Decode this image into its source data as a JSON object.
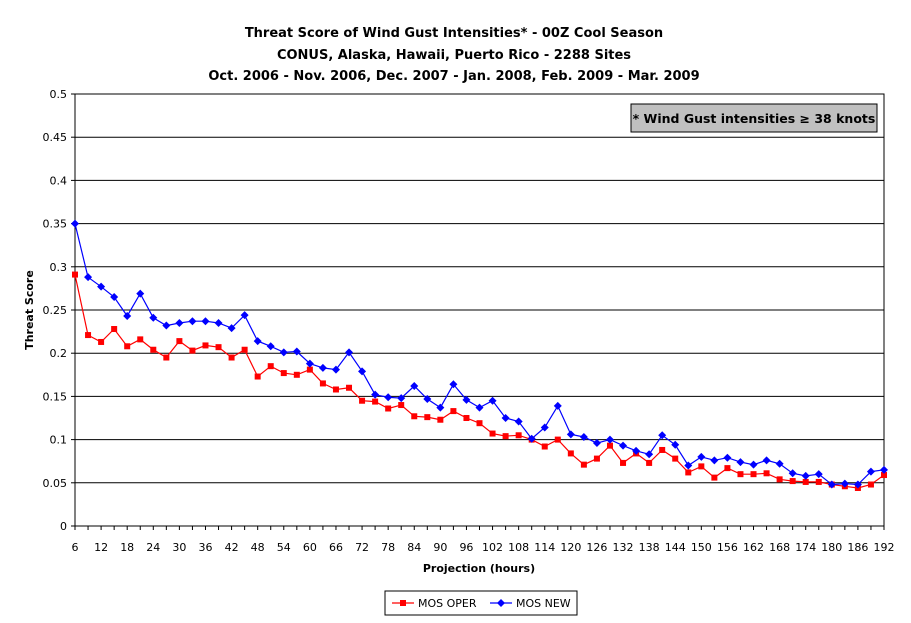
{
  "chart_data": {
    "type": "line",
    "title_lines": [
      "Threat Score of Wind Gust Intensities* - 00Z Cool Season",
      "CONUS, Alaska, Hawaii, Puerto Rico - 2288 Sites",
      "Oct. 2006 - Nov. 2006, Dec. 2007 - Jan. 2008, Feb. 2009 - Mar. 2009"
    ],
    "annotation": "* Wind Gust intensities ≥ 38 knots",
    "xlabel": "Projection (hours)",
    "ylabel": "Threat Score",
    "xlim": [
      6,
      192
    ],
    "ylim": [
      0,
      0.5
    ],
    "x_ticks": [
      "6",
      "12",
      "18",
      "24",
      "30",
      "36",
      "42",
      "48",
      "54",
      "60",
      "66",
      "72",
      "78",
      "84",
      "90",
      "96",
      "102",
      "108",
      "114",
      "120",
      "126",
      "132",
      "138",
      "144",
      "150",
      "156",
      "162",
      "168",
      "174",
      "180",
      "186",
      "192"
    ],
    "y_ticks": [
      "0",
      "0.05",
      "0.1",
      "0.15",
      "0.2",
      "0.25",
      "0.3",
      "0.35",
      "0.4",
      "0.45",
      "0.5"
    ],
    "grid": "horizontal",
    "legend_position": "bottom",
    "x": [
      6,
      9,
      12,
      15,
      18,
      21,
      24,
      27,
      30,
      33,
      36,
      39,
      42,
      45,
      48,
      51,
      54,
      57,
      60,
      63,
      66,
      69,
      72,
      75,
      78,
      81,
      84,
      87,
      90,
      93,
      96,
      99,
      102,
      105,
      108,
      111,
      114,
      117,
      120,
      123,
      126,
      129,
      132,
      135,
      138,
      141,
      144,
      147,
      150,
      153,
      156,
      159,
      162,
      165,
      168,
      171,
      174,
      177,
      180,
      183,
      186,
      189,
      192
    ],
    "series": [
      {
        "name": "MOS OPER",
        "color": "#ff0000",
        "marker": "square",
        "values": [
          0.291,
          0.221,
          0.213,
          0.228,
          0.208,
          0.216,
          0.204,
          0.195,
          0.214,
          0.203,
          0.209,
          0.207,
          0.195,
          0.204,
          0.173,
          0.185,
          0.177,
          0.175,
          0.181,
          0.165,
          0.158,
          0.16,
          0.145,
          0.144,
          0.136,
          0.14,
          0.127,
          0.126,
          0.123,
          0.133,
          0.125,
          0.119,
          0.107,
          0.104,
          0.105,
          0.1,
          0.092,
          0.1,
          0.084,
          0.071,
          0.078,
          0.093,
          0.073,
          0.084,
          0.073,
          0.088,
          0.078,
          0.062,
          0.069,
          0.056,
          0.067,
          0.06,
          0.06,
          0.061,
          0.054,
          0.052,
          0.051,
          0.051,
          0.048,
          0.046,
          0.044,
          0.048,
          0.059
        ]
      },
      {
        "name": "MOS NEW",
        "color": "#0000ff",
        "marker": "diamond",
        "values": [
          0.35,
          0.288,
          0.277,
          0.265,
          0.243,
          0.269,
          0.241,
          0.232,
          0.235,
          0.237,
          0.237,
          0.235,
          0.229,
          0.244,
          0.214,
          0.208,
          0.201,
          0.202,
          0.188,
          0.183,
          0.181,
          0.201,
          0.179,
          0.152,
          0.149,
          0.148,
          0.162,
          0.147,
          0.137,
          0.164,
          0.146,
          0.137,
          0.145,
          0.125,
          0.121,
          0.101,
          0.114,
          0.139,
          0.106,
          0.103,
          0.096,
          0.1,
          0.093,
          0.087,
          0.083,
          0.105,
          0.094,
          0.07,
          0.08,
          0.076,
          0.079,
          0.074,
          0.071,
          0.076,
          0.072,
          0.061,
          0.058,
          0.06,
          0.048,
          0.049,
          0.048,
          0.063,
          0.065
        ]
      }
    ]
  }
}
